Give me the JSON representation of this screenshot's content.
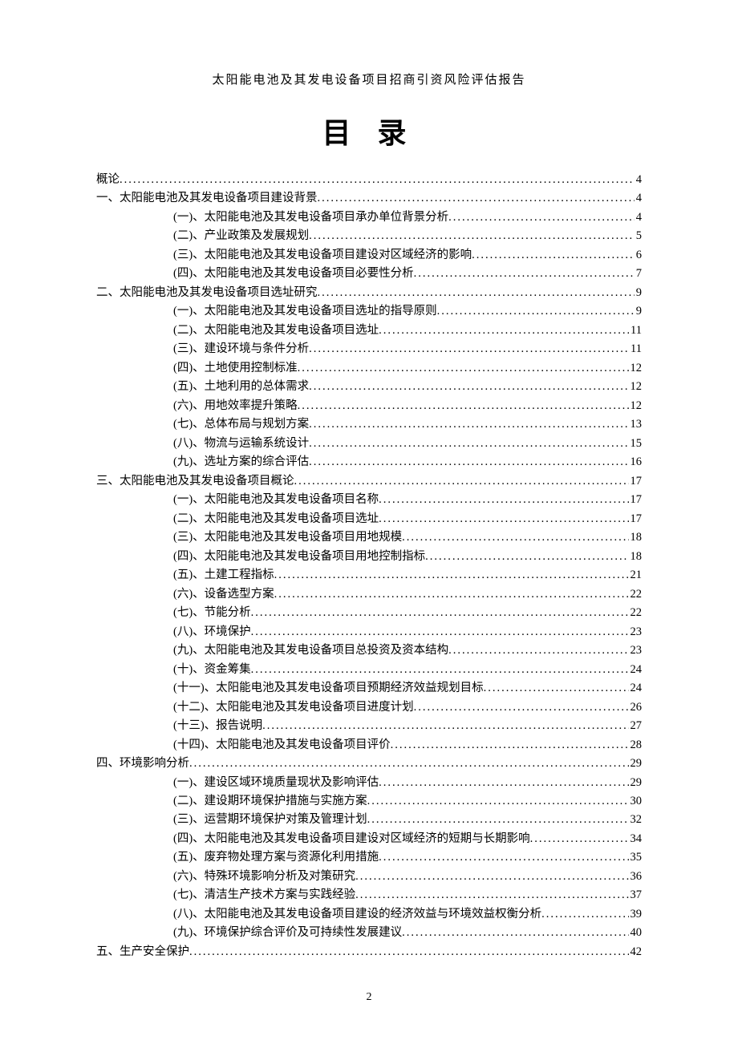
{
  "document": {
    "header": "太阳能电池及其发电设备项目招商引资风险评估报告",
    "title": "目 录",
    "page_number": "2",
    "text_color": "#000000",
    "background_color": "#ffffff",
    "font_family": "SimSun",
    "base_fontsize": 14.5,
    "title_fontsize": 36,
    "header_fontsize": 15
  },
  "toc": {
    "entries": [
      {
        "level": 0,
        "label": "概论",
        "page": "4"
      },
      {
        "level": 0,
        "label": "一、太阳能电池及其发电设备项目建设背景",
        "page": "4"
      },
      {
        "level": 1,
        "label": "(一)、太阳能电池及其发电设备项目承办单位背景分析",
        "page": "4"
      },
      {
        "level": 1,
        "label": "(二)、产业政策及发展规划",
        "page": "5"
      },
      {
        "level": 1,
        "label": "(三)、太阳能电池及其发电设备项目建设对区域经济的影响",
        "page": "6"
      },
      {
        "level": 1,
        "label": "(四)、太阳能电池及其发电设备项目必要性分析",
        "page": "7"
      },
      {
        "level": 0,
        "label": "二、太阳能电池及其发电设备项目选址研究",
        "page": "9"
      },
      {
        "level": 1,
        "label": "(一)、太阳能电池及其发电设备项目选址的指导原则",
        "page": "9"
      },
      {
        "level": 1,
        "label": "(二)、太阳能电池及其发电设备项目选址",
        "page": "11"
      },
      {
        "level": 1,
        "label": "(三)、建设环境与条件分析",
        "page": "11"
      },
      {
        "level": 1,
        "label": "(四)、土地使用控制标准",
        "page": "12"
      },
      {
        "level": 1,
        "label": "(五)、土地利用的总体需求",
        "page": "12"
      },
      {
        "level": 1,
        "label": "(六)、用地效率提升策略",
        "page": "12"
      },
      {
        "level": 1,
        "label": "(七)、总体布局与规划方案",
        "page": "13"
      },
      {
        "level": 1,
        "label": "(八)、物流与运输系统设计",
        "page": "15"
      },
      {
        "level": 1,
        "label": "(九)、选址方案的综合评估",
        "page": "16"
      },
      {
        "level": 0,
        "label": "三、太阳能电池及其发电设备项目概论",
        "page": "17"
      },
      {
        "level": 1,
        "label": "(一)、太阳能电池及其发电设备项目名称",
        "page": "17"
      },
      {
        "level": 1,
        "label": "(二)、太阳能电池及其发电设备项目选址",
        "page": "17"
      },
      {
        "level": 1,
        "label": "(三)、太阳能电池及其发电设备项目用地规模",
        "page": "18"
      },
      {
        "level": 1,
        "label": "(四)、太阳能电池及其发电设备项目用地控制指标",
        "page": "18"
      },
      {
        "level": 1,
        "label": "(五)、土建工程指标",
        "page": "21"
      },
      {
        "level": 1,
        "label": "(六)、设备选型方案",
        "page": "22"
      },
      {
        "level": 1,
        "label": "(七)、节能分析",
        "page": "22"
      },
      {
        "level": 1,
        "label": "(八)、环境保护",
        "page": "23"
      },
      {
        "level": 1,
        "label": "(九)、太阳能电池及其发电设备项目总投资及资本结构",
        "page": "23"
      },
      {
        "level": 1,
        "label": "(十)、资金筹集",
        "page": "24"
      },
      {
        "level": 1,
        "label": "(十一)、太阳能电池及其发电设备项目预期经济效益规划目标",
        "page": "24"
      },
      {
        "level": 1,
        "label": "(十二)、太阳能电池及其发电设备项目进度计划",
        "page": "26"
      },
      {
        "level": 1,
        "label": "(十三)、报告说明",
        "page": "27"
      },
      {
        "level": 1,
        "label": "(十四)、太阳能电池及其发电设备项目评价",
        "page": "28"
      },
      {
        "level": 0,
        "label": "四、环境影响分析",
        "page": "29"
      },
      {
        "level": 1,
        "label": "(一)、建设区域环境质量现状及影响评估",
        "page": "29"
      },
      {
        "level": 1,
        "label": "(二)、建设期环境保护措施与实施方案",
        "page": "30"
      },
      {
        "level": 1,
        "label": "(三)、运营期环境保护对策及管理计划",
        "page": "32"
      },
      {
        "level": 1,
        "label": "(四)、太阳能电池及其发电设备项目建设对区域经济的短期与长期影响",
        "page": "34"
      },
      {
        "level": 1,
        "label": "(五)、废弃物处理方案与资源化利用措施",
        "page": "35"
      },
      {
        "level": 1,
        "label": "(六)、特殊环境影响分析及对策研究",
        "page": "36"
      },
      {
        "level": 1,
        "label": "(七)、清洁生产技术方案与实践经验",
        "page": "37"
      },
      {
        "level": 1,
        "label": "(八)、太阳能电池及其发电设备项目建设的经济效益与环境效益权衡分析",
        "page": "39"
      },
      {
        "level": 1,
        "label": "(九)、环境保护综合评价及可持续性发展建议",
        "page": "40"
      },
      {
        "level": 0,
        "label": "五、生产安全保护",
        "page": "42"
      }
    ]
  }
}
